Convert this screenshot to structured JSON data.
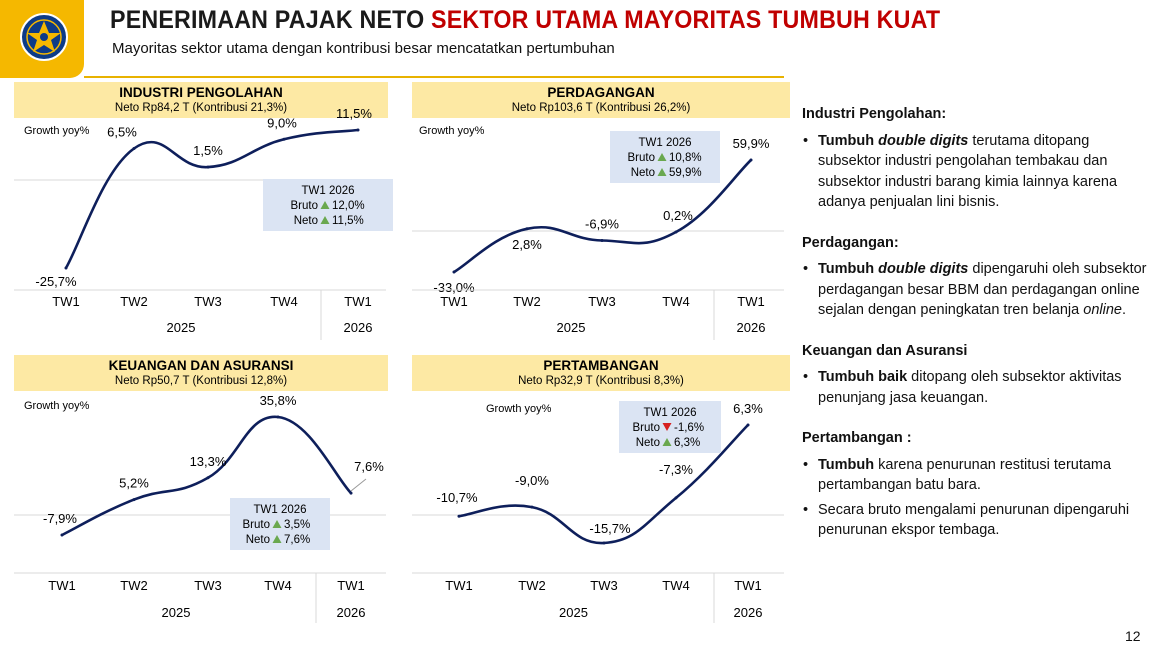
{
  "header": {
    "title_part1": "PENERIMAAN PAJAK NETO",
    "title_part2": "SEKTOR UTAMA MAYORITAS TUMBUH KUAT",
    "subtitle": "Mayoritas sektor utama dengan kontribusi besar mencatatkan pertumbuhan",
    "logo_icon": "kemenkeu-emblem-icon"
  },
  "colors": {
    "line": "#0e1f5b",
    "header_fill": "#fde9a4",
    "callout_fill": "#dbe4f3",
    "up": "#6aa84f",
    "down": "#d62020",
    "title_accent": "#c00000",
    "brand": "#f5b800"
  },
  "chart_data": [
    {
      "type": "line",
      "title": "INDUSTRI PENGOLAHAN",
      "subtitle": "Neto Rp84,2 T (Kontribusi 21,3%)",
      "ylabel": "Growth yoy%",
      "categories": [
        "TW1",
        "TW2",
        "TW3",
        "TW4",
        "TW1"
      ],
      "years": [
        "2025",
        "2026"
      ],
      "values": [
        -25.7,
        6.5,
        1.5,
        9.0,
        11.5
      ],
      "labels": [
        "-25,7%",
        "6,5%",
        "1,5%",
        "9,0%",
        "11,5%"
      ],
      "callout": {
        "title": "TW1 2026",
        "bruto_label": "Bruto",
        "bruto_dir": "up",
        "bruto_value": "12,0%",
        "neto_label": "Neto",
        "neto_dir": "up",
        "neto_value": "11,5%"
      }
    },
    {
      "type": "line",
      "title": "PERDAGANGAN",
      "subtitle": "Neto Rp103,6 T (Kontribusi 26,2%)",
      "ylabel": "Growth yoy%",
      "categories": [
        "TW1",
        "TW2",
        "TW3",
        "TW4",
        "TW1"
      ],
      "years": [
        "2025",
        "2026"
      ],
      "values": [
        -33.0,
        2.8,
        -6.9,
        0.2,
        59.9
      ],
      "labels": [
        "-33,0%",
        "2,8%",
        "-6,9%",
        "0,2%",
        "59,9%"
      ],
      "callout": {
        "title": "TW1 2026",
        "bruto_label": "Bruto",
        "bruto_dir": "up",
        "bruto_value": "10,8%",
        "neto_label": "Neto",
        "neto_dir": "up",
        "neto_value": "59,9%"
      }
    },
    {
      "type": "line",
      "title": "KEUANGAN DAN ASURANSI",
      "subtitle": "Neto Rp50,7 T (Kontribusi 12,8%)",
      "ylabel": "Growth yoy%",
      "categories": [
        "TW1",
        "TW2",
        "TW3",
        "TW4",
        "TW1"
      ],
      "years": [
        "2025",
        "2026"
      ],
      "values": [
        -7.9,
        5.2,
        13.3,
        35.8,
        7.6
      ],
      "labels": [
        "-7,9%",
        "5,2%",
        "13,3%",
        "35,8%",
        "7,6%"
      ],
      "callout": {
        "title": "TW1 2026",
        "bruto_label": "Bruto",
        "bruto_dir": "up",
        "bruto_value": "3,5%",
        "neto_label": "Neto",
        "neto_dir": "up",
        "neto_value": "7,6%"
      }
    },
    {
      "type": "line",
      "title": "PERTAMBANGAN",
      "subtitle": "Neto Rp32,9 T (Kontribusi 8,3%)",
      "ylabel": "Growth yoy%",
      "categories": [
        "TW1",
        "TW2",
        "TW3",
        "TW4",
        "TW1"
      ],
      "years": [
        "2025",
        "2026"
      ],
      "values": [
        -10.7,
        -9.0,
        -15.7,
        -7.3,
        6.3
      ],
      "labels": [
        "-10,7%",
        "-9,0%",
        "-15,7%",
        "-7,3%",
        "6,3%"
      ],
      "callout": {
        "title": "TW1 2026",
        "bruto_label": "Bruto",
        "bruto_dir": "down",
        "bruto_value": "-1,6%",
        "neto_label": "Neto",
        "neto_dir": "up",
        "neto_value": "6,3%"
      }
    }
  ],
  "commentary": {
    "industri": {
      "title": "Industri Pengolahan:",
      "b1_lead": "Tumbuh ",
      "b1_em": "double digits",
      "b1_text": " terutama ditopang subsektor industri pengolahan tembakau dan subsektor industri barang kimia lainnya karena adanya penjualan lini bisnis."
    },
    "perdagangan": {
      "title": "Perdagangan:",
      "b1_lead": "Tumbuh ",
      "b1_em": "double digits",
      "b1_text": " dipengaruhi oleh subsektor perdagangan besar BBM dan perdagangan online sejalan dengan peningkatan tren belanja ",
      "b1_tail": "online",
      "b1_end": "."
    },
    "keuangan": {
      "title": "Keuangan dan Asuransi",
      "b1_lead": "Tumbuh baik",
      "b1_text": " ditopang oleh subsektor aktivitas penunjang jasa keuangan."
    },
    "pertambangan": {
      "title": "Pertambangan :",
      "b1_lead": "Tumbuh",
      "b1_text": " karena penurunan restitusi terutama pertambangan batu bara.",
      "b2_text": "Secara bruto mengalami penurunan dipengaruhi penurunan ekspor tembaga."
    }
  },
  "page_number": "12"
}
